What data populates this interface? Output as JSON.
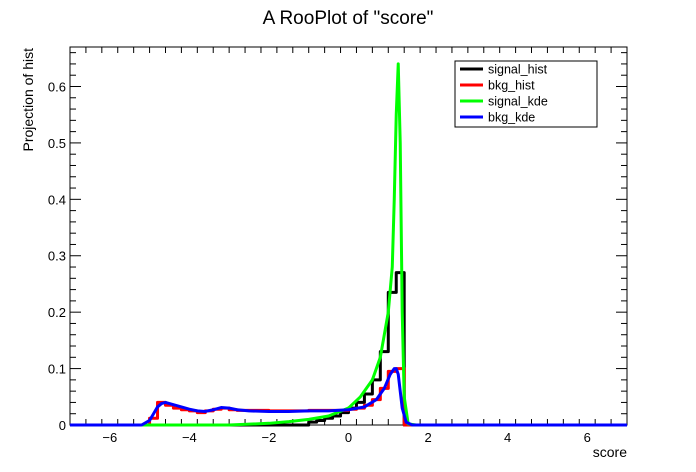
{
  "chart_data": {
    "type": "line",
    "title": "A RooPlot of \"score\"",
    "xlabel": "score",
    "ylabel": "Projection of hist",
    "xlim": [
      -7,
      7
    ],
    "ylim": [
      0,
      0.67
    ],
    "x_ticks": [
      -6,
      -4,
      -2,
      0,
      2,
      4,
      6
    ],
    "x_tick_labels": [
      "−6",
      "−4",
      "−2",
      "0",
      "2",
      "4",
      "6"
    ],
    "y_ticks": [
      0,
      0.1,
      0.2,
      0.3,
      0.4,
      0.5,
      0.6
    ],
    "y_tick_labels": [
      "0",
      "0.1",
      "0.2",
      "0.3",
      "0.4",
      "0.5",
      "0.6"
    ],
    "grid": false,
    "legend_position": "top-right",
    "series": [
      {
        "name": "signal_hist",
        "color": "#000000",
        "style": "step",
        "x": [
          -7,
          -1.0,
          -0.8,
          -0.6,
          -0.4,
          -0.2,
          0.0,
          0.2,
          0.4,
          0.6,
          0.8,
          1.0,
          1.2,
          1.4,
          7
        ],
        "y": [
          0,
          0.005,
          0.008,
          0.012,
          0.016,
          0.022,
          0.03,
          0.04,
          0.055,
          0.08,
          0.13,
          0.235,
          0.27,
          0,
          0
        ]
      },
      {
        "name": "bkg_hist",
        "color": "#ff0000",
        "style": "step",
        "x": [
          -7,
          -5.0,
          -4.8,
          -4.6,
          -4.4,
          -4.2,
          -4.0,
          -3.8,
          -3.6,
          -3.4,
          -3.2,
          -3.0,
          -2.8,
          -2.0,
          -1.0,
          0.0,
          0.2,
          0.4,
          0.6,
          0.8,
          1.0,
          1.2,
          1.4,
          7
        ],
        "y": [
          0,
          0.012,
          0.04,
          0.035,
          0.03,
          0.027,
          0.025,
          0.022,
          0.025,
          0.028,
          0.03,
          0.027,
          0.026,
          0.025,
          0.026,
          0.028,
          0.03,
          0.035,
          0.045,
          0.065,
          0.095,
          0.1,
          0,
          0
        ]
      },
      {
        "name": "signal_kde",
        "color": "#00ff00",
        "style": "line",
        "x": [
          -7,
          -3.0,
          -2.0,
          -1.5,
          -1.0,
          -0.5,
          0.0,
          0.3,
          0.6,
          0.8,
          1.0,
          1.1,
          1.15,
          1.2,
          1.25,
          1.3,
          1.35,
          1.4,
          1.5,
          1.7,
          7
        ],
        "y": [
          0,
          0.0,
          0.003,
          0.006,
          0.01,
          0.016,
          0.03,
          0.05,
          0.08,
          0.12,
          0.2,
          0.28,
          0.4,
          0.55,
          0.64,
          0.5,
          0.2,
          0.05,
          0.002,
          0,
          0
        ]
      },
      {
        "name": "bkg_kde",
        "color": "#0000ff",
        "style": "line",
        "x": [
          -7,
          -5.2,
          -5.0,
          -4.9,
          -4.8,
          -4.7,
          -4.6,
          -4.4,
          -4.2,
          -4.0,
          -3.8,
          -3.6,
          -3.4,
          -3.2,
          -3.0,
          -2.8,
          -2.5,
          -2.0,
          -1.5,
          -1.0,
          -0.5,
          0.0,
          0.4,
          0.7,
          0.9,
          1.05,
          1.15,
          1.2,
          1.25,
          1.3,
          1.35,
          1.45,
          1.6,
          7
        ],
        "y": [
          0,
          0.0,
          0.008,
          0.02,
          0.032,
          0.038,
          0.04,
          0.036,
          0.032,
          0.028,
          0.025,
          0.024,
          0.027,
          0.031,
          0.03,
          0.027,
          0.025,
          0.024,
          0.024,
          0.025,
          0.025,
          0.027,
          0.032,
          0.045,
          0.065,
          0.09,
          0.1,
          0.1,
          0.09,
          0.06,
          0.03,
          0.005,
          0,
          0
        ]
      }
    ]
  }
}
